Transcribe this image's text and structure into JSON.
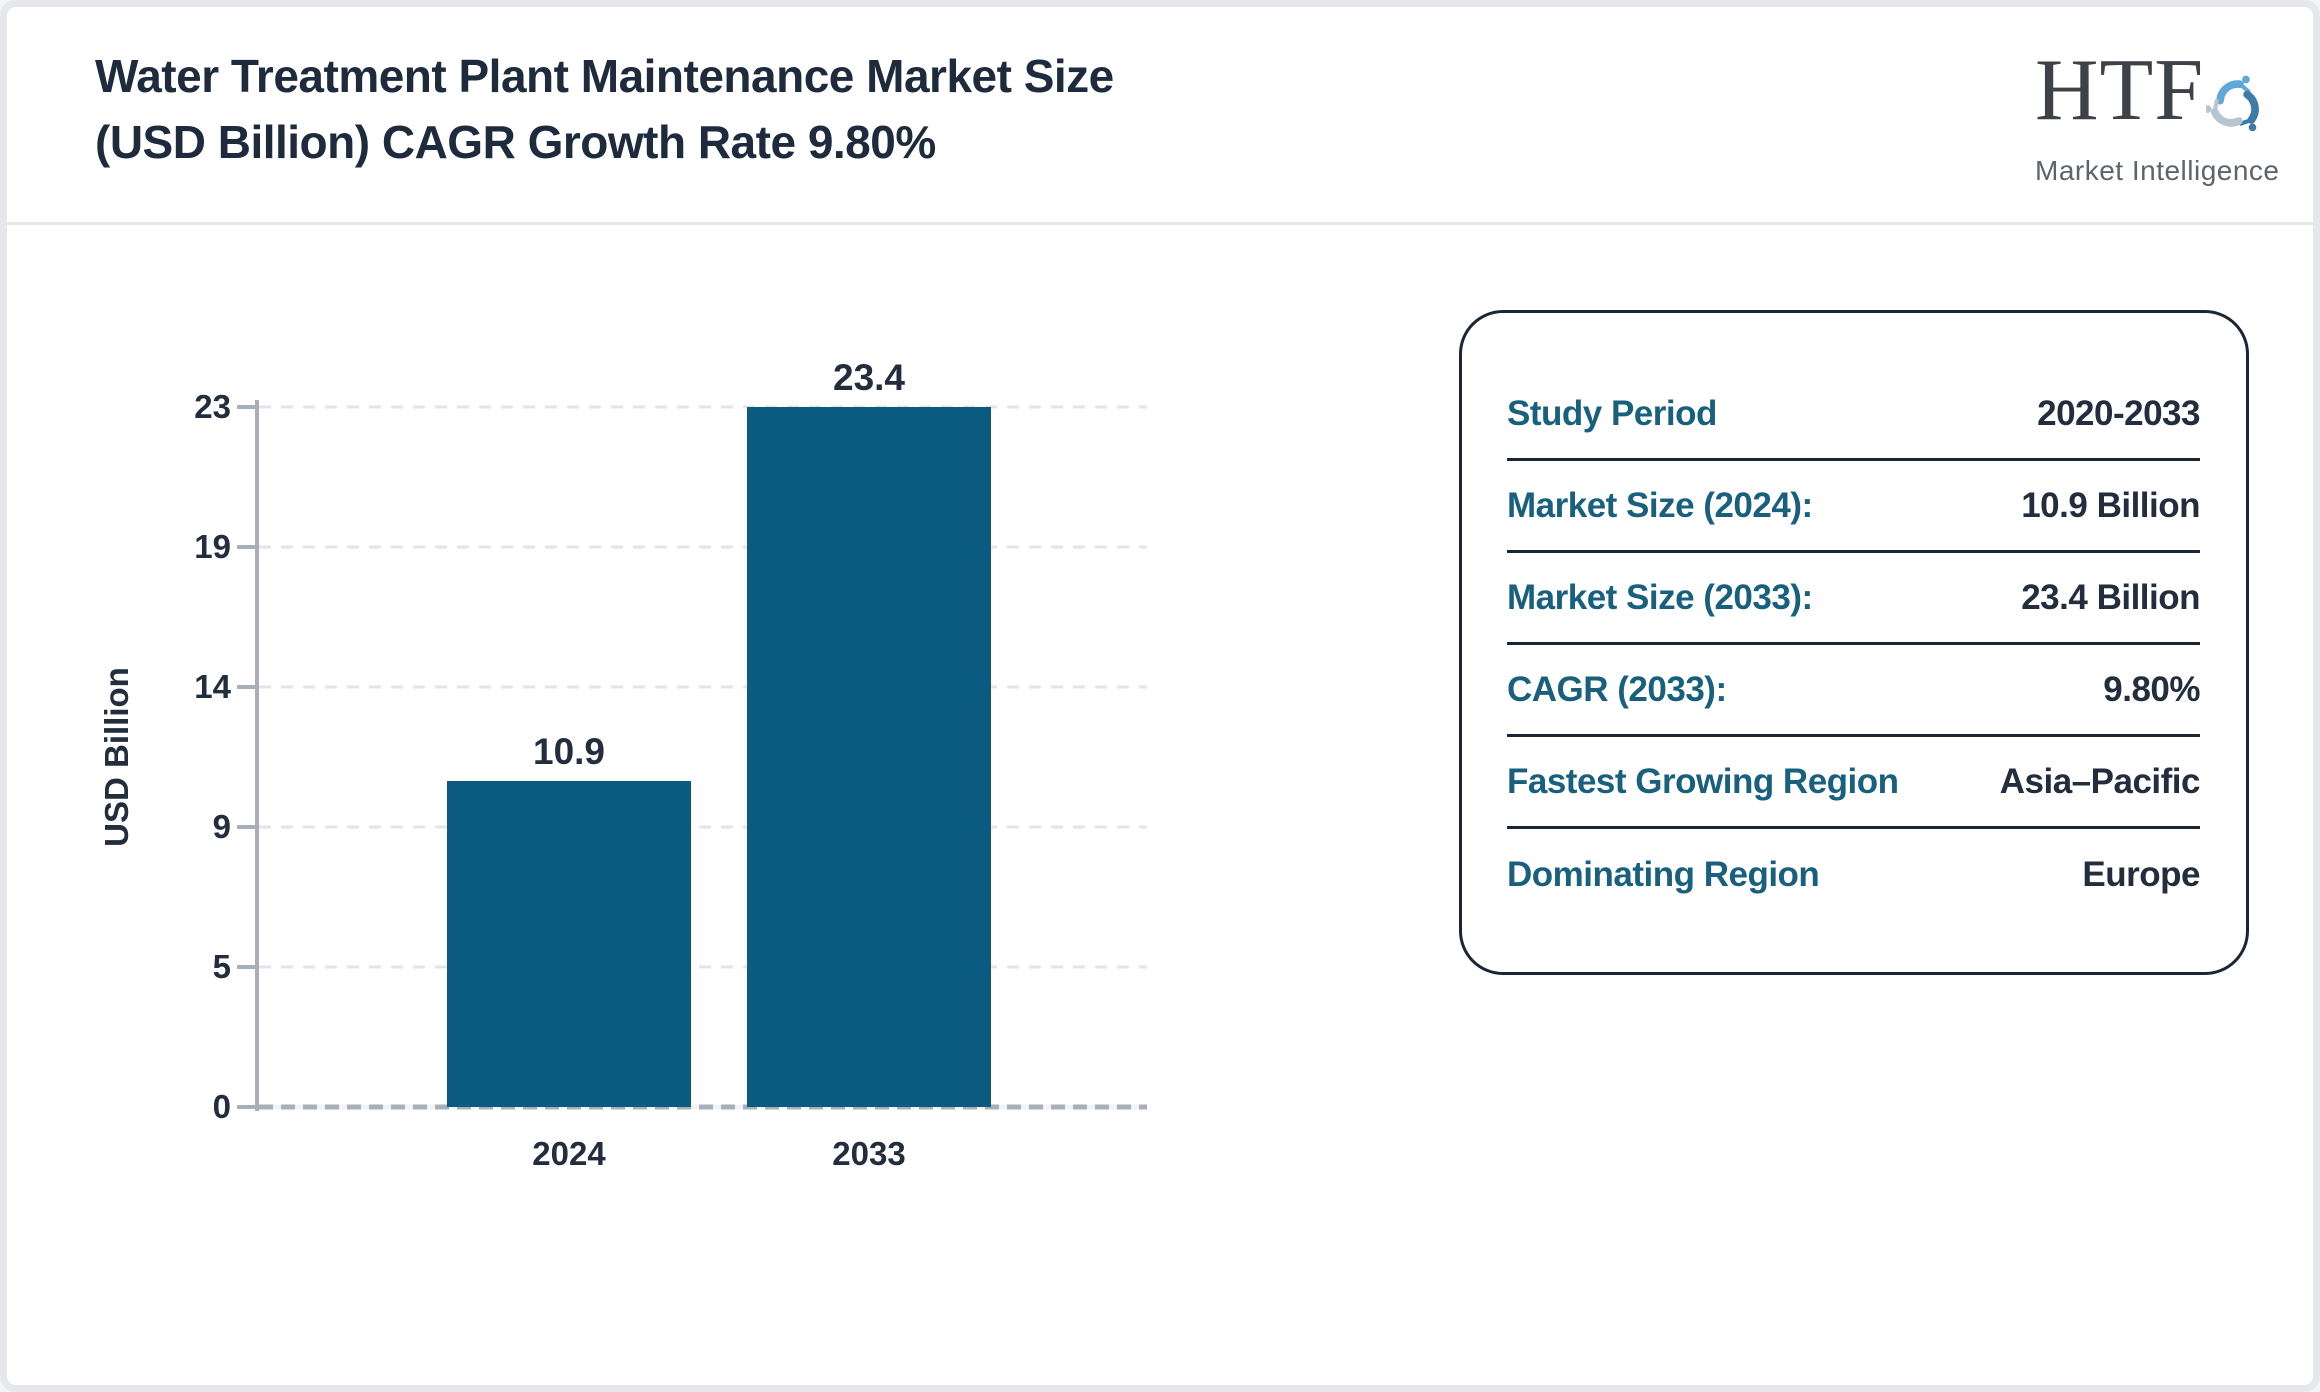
{
  "header": {
    "title_line1": "Water Treatment Plant Maintenance Market Size",
    "title_line2": "(USD Billion) CAGR Growth Rate 9.80%",
    "logo": {
      "acronym": "HTF",
      "subtitle": "Market Intelligence"
    }
  },
  "chart_data": {
    "type": "bar",
    "title": "Water Treatment Plant Maintenance Market Size (USD Billion) CAGR Growth Rate 9.80%",
    "categories": [
      "2024",
      "2033"
    ],
    "values": [
      10.9,
      23.4
    ],
    "value_labels": [
      "10.9",
      "23.4"
    ],
    "xlabel": "",
    "ylabel": "USD Billion",
    "ylim": [
      0,
      23.4
    ],
    "ytick_labels_top_to_bottom": [
      "23",
      "19",
      "14",
      "9",
      "5",
      "0"
    ],
    "grid": true,
    "gridline_style": "dashed",
    "legend_position": "none"
  },
  "info_panel": {
    "rows": [
      {
        "label": "Study Period",
        "value": "2020-2033"
      },
      {
        "label": "Market Size (2024):",
        "value": "10.9 Billion"
      },
      {
        "label": "Market Size (2033):",
        "value": "23.4 Billion"
      },
      {
        "label": "CAGR (2033):",
        "value": "9.80%"
      },
      {
        "label": "Fastest Growing Region",
        "value": "Asia–Pacific"
      },
      {
        "label": "Dominating Region",
        "value": "Europe"
      }
    ]
  },
  "colors": {
    "bar": "#0b5b80",
    "label_teal": "#19607f",
    "text_navy": "#222d3d",
    "axis_gray": "#a9afb8",
    "icon_light_blue": "#5fa8d8",
    "icon_steel_blue": "#3e7ba9",
    "icon_gray_blue": "#b7c4d1"
  }
}
